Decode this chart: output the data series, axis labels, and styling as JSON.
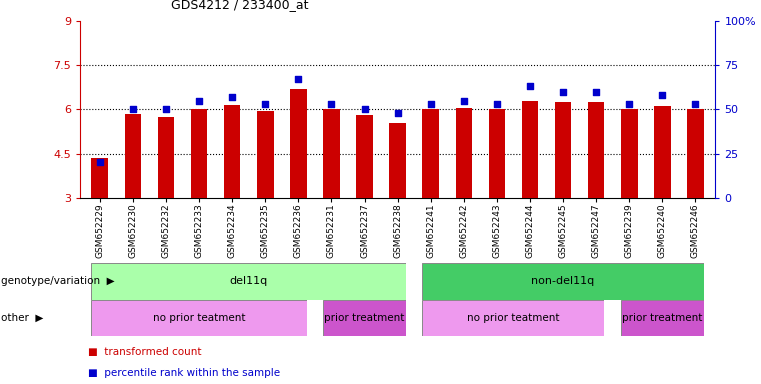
{
  "title": "GDS4212 / 233400_at",
  "samples": [
    "GSM652229",
    "GSM652230",
    "GSM652232",
    "GSM652233",
    "GSM652234",
    "GSM652235",
    "GSM652236",
    "GSM652231",
    "GSM652237",
    "GSM652238",
    "GSM652241",
    "GSM652242",
    "GSM652243",
    "GSM652244",
    "GSM652245",
    "GSM652247",
    "GSM652239",
    "GSM652240",
    "GSM652246"
  ],
  "bar_values": [
    4.35,
    5.85,
    5.75,
    6.0,
    6.15,
    5.95,
    6.7,
    6.0,
    5.8,
    5.55,
    6.0,
    6.05,
    6.0,
    6.3,
    6.25,
    6.25,
    6.0,
    6.1,
    6.0
  ],
  "dot_values": [
    20,
    50,
    50,
    55,
    57,
    53,
    67,
    53,
    50,
    48,
    53,
    55,
    53,
    63,
    60,
    60,
    53,
    58,
    53
  ],
  "bar_color": "#cc0000",
  "dot_color": "#0000cc",
  "ylim_left": [
    3,
    9
  ],
  "ylim_right": [
    0,
    100
  ],
  "yticks_left": [
    3,
    4.5,
    6.0,
    7.5,
    9
  ],
  "yticks_right": [
    0,
    25,
    50,
    75,
    100
  ],
  "ytick_labels_left": [
    "3",
    "4.5",
    "6",
    "7.5",
    "9"
  ],
  "ytick_labels_right": [
    "0",
    "25",
    "50",
    "75",
    "100%"
  ],
  "hlines": [
    4.5,
    6.0,
    7.5
  ],
  "genotype_groups": [
    {
      "label": "del11q",
      "start": 0,
      "end": 10,
      "color": "#aaffaa"
    },
    {
      "label": "non-del11q",
      "start": 10,
      "end": 19,
      "color": "#44cc66"
    }
  ],
  "other_groups": [
    {
      "label": "no prior teatment",
      "start": 0,
      "end": 7,
      "color": "#ee99ee"
    },
    {
      "label": "prior treatment",
      "start": 7,
      "end": 10,
      "color": "#cc55cc"
    },
    {
      "label": "no prior teatment",
      "start": 10,
      "end": 16,
      "color": "#ee99ee"
    },
    {
      "label": "prior treatment",
      "start": 16,
      "end": 19,
      "color": "#cc55cc"
    }
  ],
  "genotype_label": "genotype/variation",
  "other_label": "other",
  "legend_red_label": "transformed count",
  "legend_blue_label": "percentile rank within the sample",
  "bar_color_legend": "#cc0000",
  "dot_color_legend": "#0000cc",
  "background_color": "#ffffff"
}
